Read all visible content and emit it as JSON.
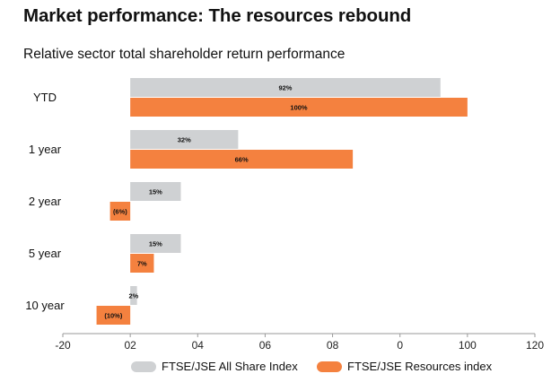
{
  "header": {
    "title": "Market performance: The resources rebound",
    "subtitle": "Relative sector total shareholder return performance"
  },
  "colors": {
    "all_share": "#cfd1d3",
    "resources": "#f4813f",
    "axis": "#9a9a9a"
  },
  "chart_data": {
    "type": "bar",
    "orientation": "horizontal",
    "title": "Relative sector total shareholder return performance",
    "categories": [
      "YTD",
      "1 year",
      "2 year",
      "5 year",
      "10 year"
    ],
    "series": [
      {
        "name": "FTSE/JSE All Share Index",
        "values": [
          92,
          32,
          15,
          15,
          2
        ],
        "labels": [
          "92%",
          "32%",
          "15%",
          "15%",
          "2%"
        ]
      },
      {
        "name": "FTSE/JSE Resources index",
        "values": [
          100,
          66,
          -6,
          7,
          -10
        ],
        "labels": [
          "100%",
          "66%",
          "(6%)",
          "7%",
          "(10%)"
        ]
      }
    ],
    "xlim": [
      -20,
      120
    ],
    "xticks": [
      "-20",
      "02",
      "04",
      "06",
      "08",
      "0",
      "100",
      "120"
    ],
    "legend": "bottom-center",
    "grid": false
  }
}
